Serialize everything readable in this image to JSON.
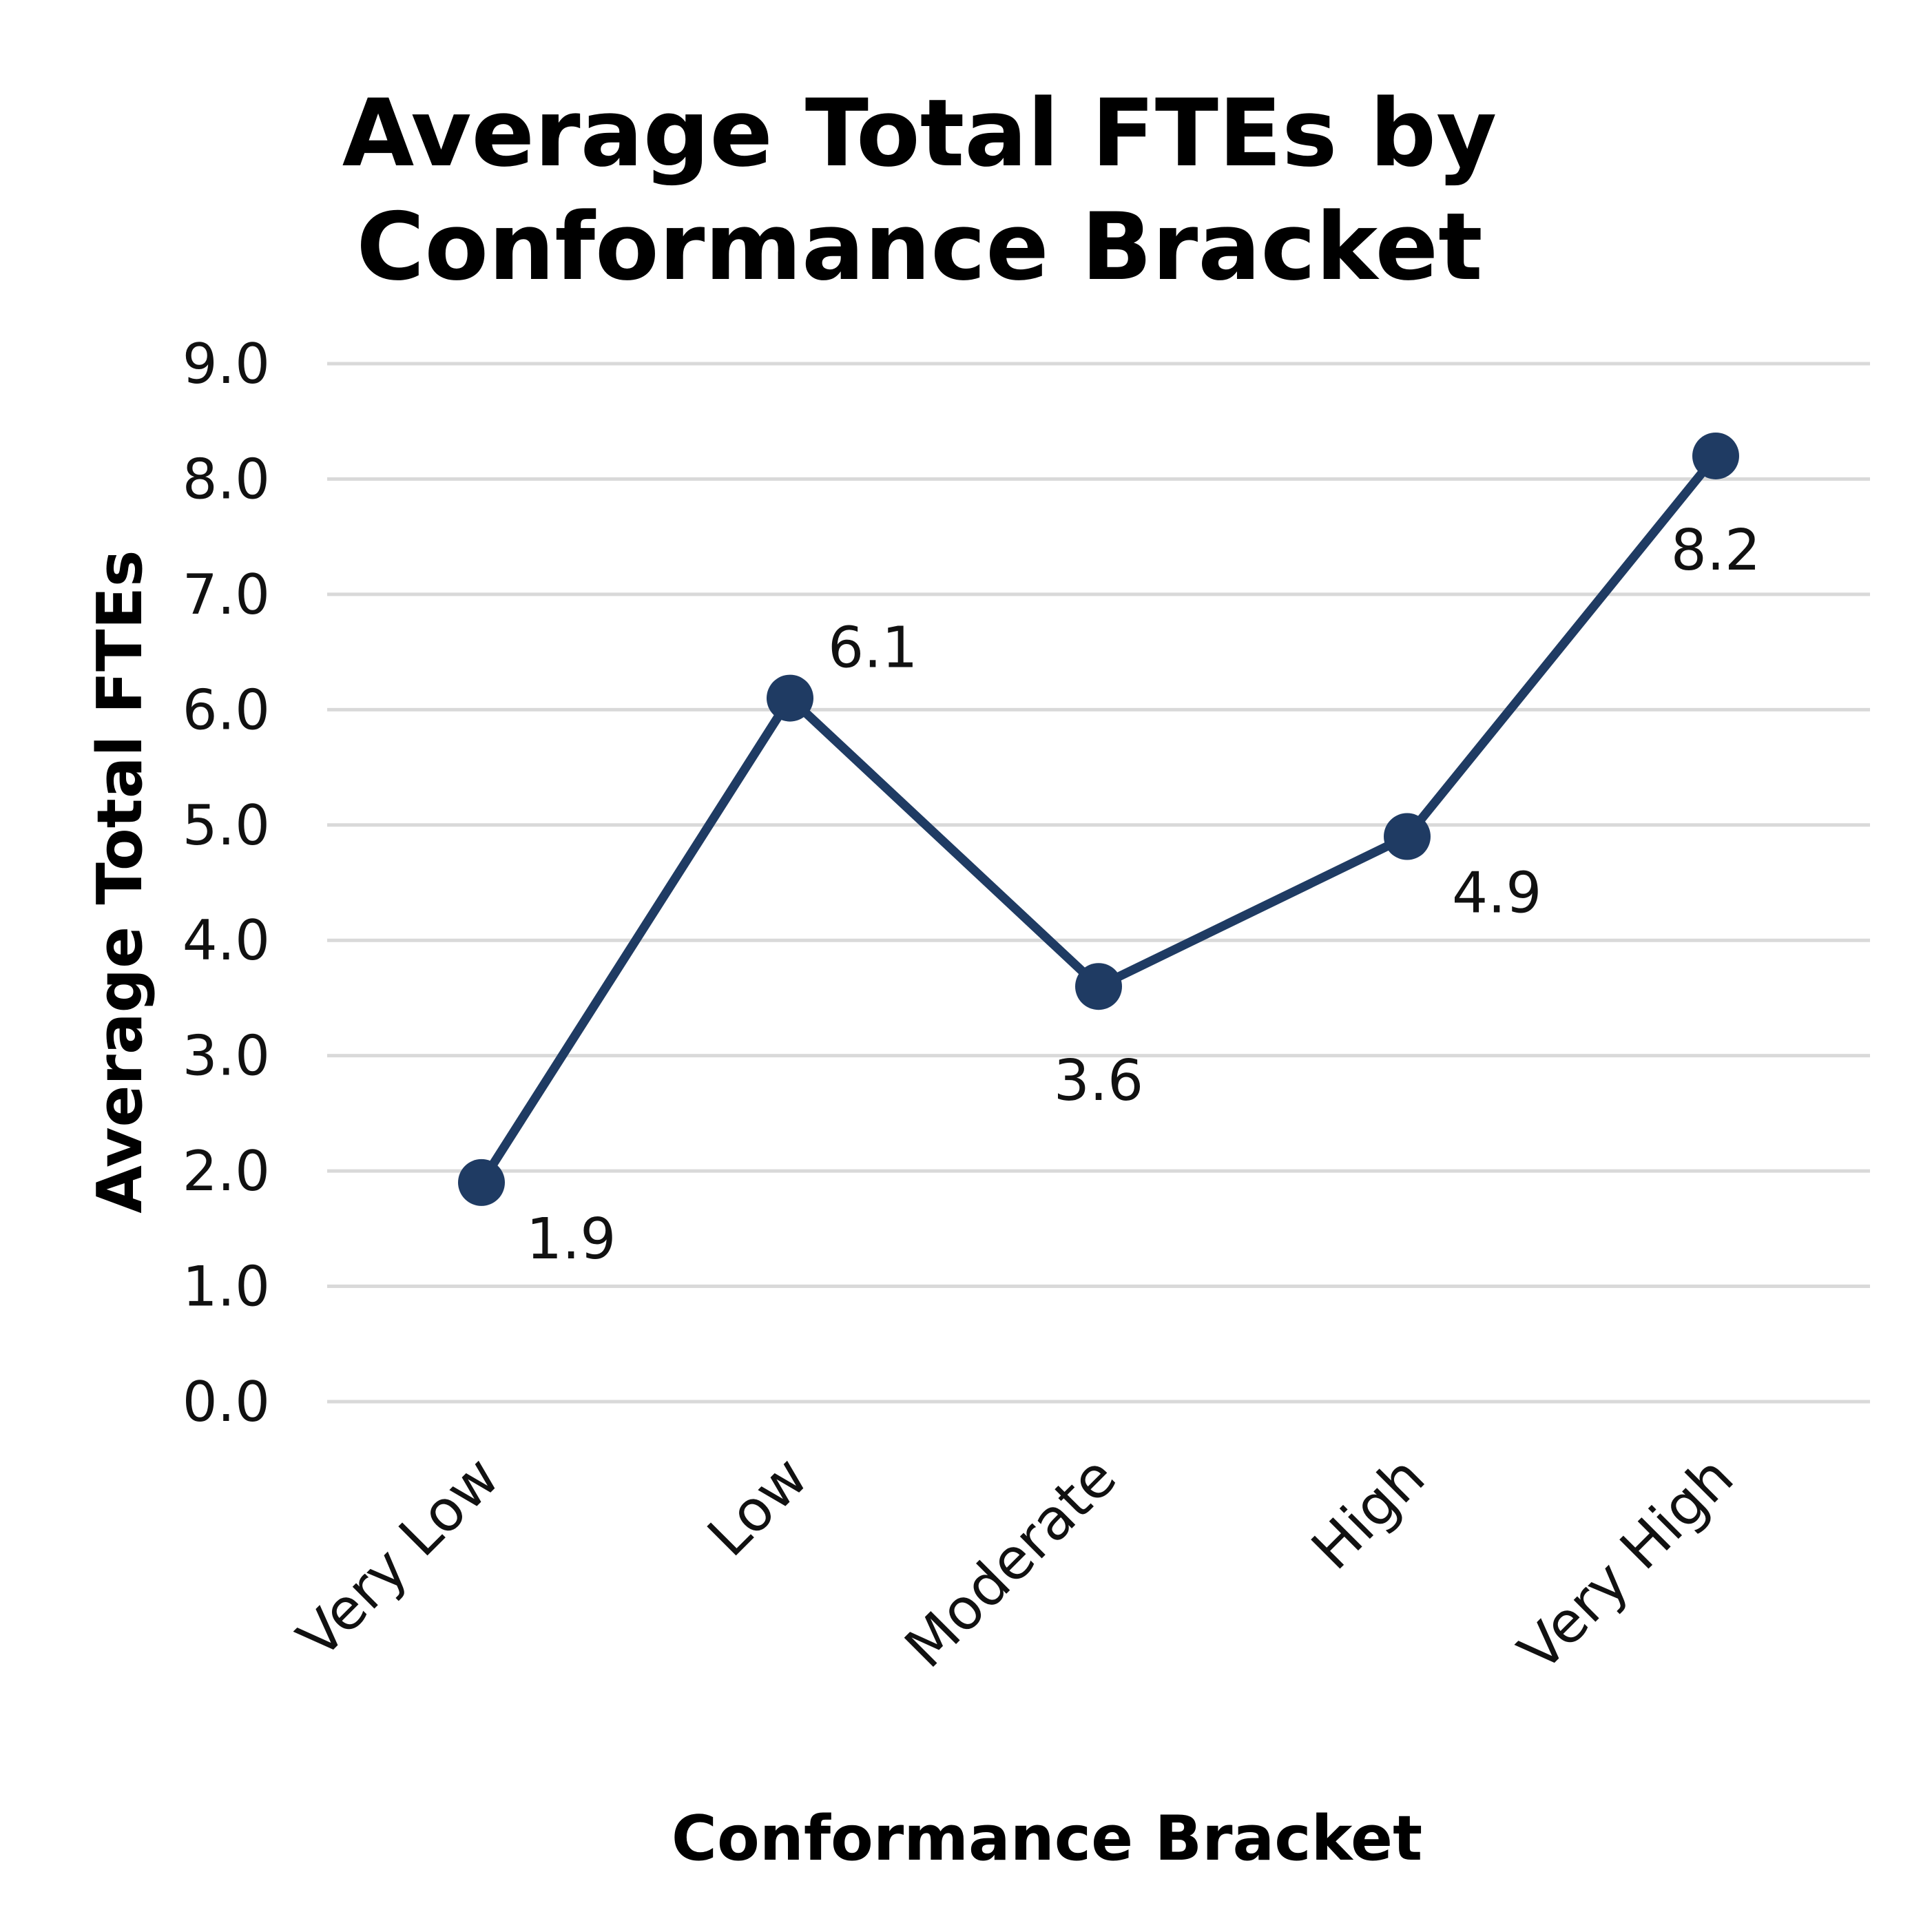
{
  "chart_data": {
    "type": "line",
    "title_lines": [
      "Average Total FTEs by",
      "Conformance Bracket"
    ],
    "xlabel": "Conformance Bracket",
    "ylabel": "Average Total FTEs",
    "categories": [
      "Very Low",
      "Low",
      "Moderate",
      "High",
      "Very High"
    ],
    "series": [
      {
        "values": [
          1.9,
          6.1,
          3.6,
          4.9,
          8.2
        ],
        "data_labels": [
          "1.9",
          "6.1",
          "3.6",
          "4.9",
          "8.2"
        ]
      }
    ],
    "ylim": [
      0,
      9
    ],
    "yticks": [
      "0.0",
      "1.0",
      "2.0",
      "3.0",
      "4.0",
      "5.0",
      "6.0",
      "7.0",
      "8.0",
      "9.0"
    ],
    "grid": true,
    "legend": "none",
    "colors": {
      "series": "#1f3b63",
      "grid": "#d9d9d9",
      "text": "#000000"
    }
  }
}
